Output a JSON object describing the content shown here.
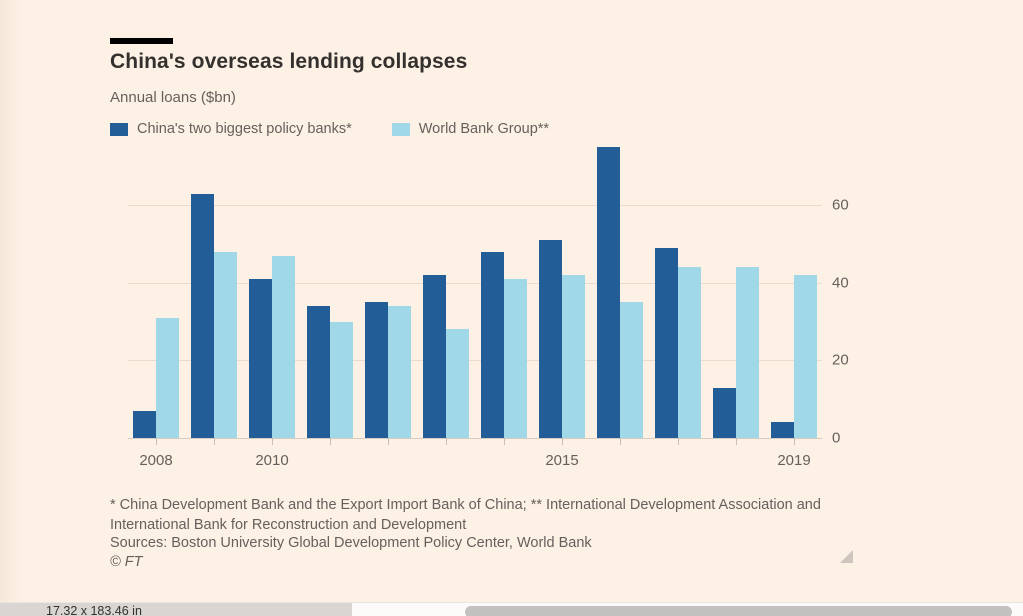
{
  "title": "China's overseas lending collapses",
  "subtitle": "Annual loans ($bn)",
  "legend": [
    {
      "label": "China's two biggest policy banks*",
      "color": "#235d97"
    },
    {
      "label": "World Bank Group**",
      "color": "#a1d8e8"
    }
  ],
  "chart_data": {
    "type": "bar",
    "title": "China's overseas lending collapses",
    "subtitle": "Annual loans ($bn)",
    "categories": [
      "2008",
      "2009",
      "2010",
      "2011",
      "2012",
      "2013",
      "2014",
      "2015",
      "2016",
      "2017",
      "2018",
      "2019"
    ],
    "series": [
      {
        "name": "China's two biggest policy banks*",
        "color": "#235d97",
        "values": [
          7,
          63,
          41,
          34,
          35,
          42,
          48,
          51,
          75,
          49,
          13,
          4
        ]
      },
      {
        "name": "World Bank Group**",
        "color": "#a1d8e8",
        "values": [
          31,
          48,
          47,
          30,
          34,
          28,
          41,
          42,
          35,
          44,
          44,
          42
        ]
      }
    ],
    "ylim": [
      0,
      76
    ],
    "y_ticks": [
      0,
      20,
      40,
      60
    ],
    "x_tick_labels": [
      {
        "label": "2008",
        "group_index": 0
      },
      {
        "label": "2010",
        "group_index": 2
      },
      {
        "label": "2015",
        "group_index": 7
      },
      {
        "label": "2019",
        "group_index": 11
      }
    ],
    "grid": true,
    "legend_position": "top",
    "y_axis_side": "right"
  },
  "footnote": "* China Development Bank and the Export Import Bank of China; ** International Development Association and International Bank for Reconstruction and Development",
  "sources": "Sources: Boston University Global Development Policy Center, World Bank",
  "credit": "© FT",
  "status_bar": {
    "dimensions_label": "17.32 x 183.46 in"
  },
  "colors": {
    "background": "#fdf1e5",
    "title_text": "#33302e",
    "muted_text": "#66605c",
    "gridline": "#eadccd",
    "baseline": "#d7cbbf",
    "series_dark": "#235d97",
    "series_light": "#a1d8e8"
  }
}
